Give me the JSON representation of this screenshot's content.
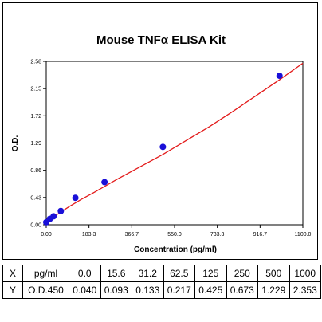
{
  "chart_data": {
    "type": "scatter",
    "title": "Mouse TNFα ELISA Kit",
    "xlabel": "Concentration (pg/ml)",
    "ylabel": "O.D.",
    "xlim": [
      0,
      1100
    ],
    "ylim": [
      0,
      2.58
    ],
    "xticks": [
      "0.00",
      "183.3",
      "366.7",
      "550.0",
      "733.3",
      "916.7",
      "1100.0"
    ],
    "yticks": [
      "0.00",
      "0.43",
      "0.86",
      "1.29",
      "1.72",
      "2.15",
      "2.58"
    ],
    "grid": false,
    "series": [
      {
        "x": [
          0.0,
          15.6,
          31.2,
          62.5,
          125,
          250,
          500,
          1000
        ],
        "y": [
          0.04,
          0.093,
          0.133,
          0.217,
          0.425,
          0.673,
          1.229,
          2.353
        ]
      }
    ],
    "fit_line": {
      "x": [
        0,
        50,
        100,
        150,
        200,
        300,
        400,
        500,
        600,
        700,
        800,
        900,
        1000,
        1100
      ],
      "y": [
        0.05,
        0.17,
        0.29,
        0.4,
        0.5,
        0.71,
        0.91,
        1.11,
        1.33,
        1.55,
        1.79,
        2.04,
        2.29,
        2.55
      ]
    },
    "colors": {
      "points": "#1a10d8",
      "fit": "#e31a1a"
    }
  },
  "table": {
    "rows": [
      {
        "head": "X",
        "unit": "pg/ml",
        "cells": [
          "0.0",
          "15.6",
          "31.2",
          "62.5",
          "125",
          "250",
          "500",
          "1000"
        ]
      },
      {
        "head": "Y",
        "unit": "O.D.450",
        "cells": [
          "0.040",
          "0.093",
          "0.133",
          "0.217",
          "0.425",
          "0.673",
          "1.229",
          "2.353"
        ]
      }
    ]
  }
}
